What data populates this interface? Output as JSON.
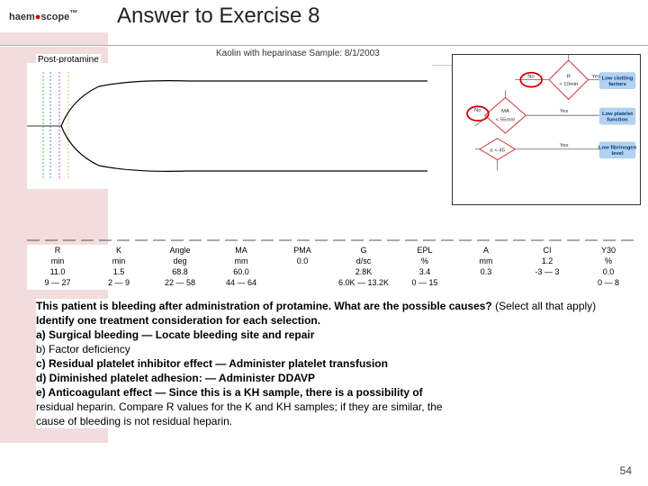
{
  "header": {
    "logo": "haem",
    "logo_red": "●",
    "logo2": "scope",
    "tm": "™",
    "title": "Answer to Exercise 8"
  },
  "chart": {
    "sample_label": "Post-protamine",
    "top_text": "Kaolin with heparinase      Sample: 8/1/2003",
    "type": "teg-curve",
    "curve_color": "#000000",
    "aux_colors": [
      "#00a000",
      "#0060d0",
      "#c000c0",
      "#e0a000"
    ],
    "background": "#ffffff"
  },
  "flowchart": {
    "nodes": {
      "r": "R\n> 10min",
      "ma": "MA\n< 55mm",
      "alpha": "α < 45",
      "lcf": "Low clotting\nfactors",
      "lpf": "Low platelet\nfunction",
      "lfl": "Low fibrinogen\nlevel"
    },
    "labels": {
      "no": "No",
      "yes": "Yes"
    }
  },
  "data": {
    "columns": [
      {
        "name": "R",
        "unit": "min",
        "v1": "11.0",
        "v2": "9 — 27"
      },
      {
        "name": "K",
        "unit": "min",
        "v1": "1.5",
        "v2": "2 — 9"
      },
      {
        "name": "Angle",
        "unit": "deg",
        "v1": "68.8",
        "v2": "22 — 58"
      },
      {
        "name": "MA",
        "unit": "mm",
        "v1": "60.0",
        "v2": "44 — 64"
      },
      {
        "name": "PMA",
        "unit": "",
        "v1": "",
        "v2": "0.0"
      },
      {
        "name": "G",
        "unit": "d/sc",
        "v1": "2.8K",
        "v2": "6.0K — 13.2K"
      },
      {
        "name": "EPL",
        "unit": "%",
        "v1": "3.4",
        "v2": "0 — 15"
      },
      {
        "name": "A",
        "unit": "mm",
        "v1": "",
        "v2": "0.3"
      },
      {
        "name": "CI",
        "unit": "",
        "v1": "1.2",
        "v2": "-3 — 3"
      },
      {
        "name": "Y30",
        "unit": "%",
        "v1": "0.0",
        "v2": "0 — 8"
      }
    ]
  },
  "qa": {
    "question_part1": "This patient is bleeding after administration of protamine. What are the possible causes?",
    "question_part2": " (Select all that apply) ",
    "question_part3": "Identify one treatment consideration for each selection.",
    "options": [
      {
        "bold": true,
        "text": "a) Surgical bleeding — Locate bleeding site and repair"
      },
      {
        "bold": false,
        "text": "b) Factor deficiency"
      },
      {
        "bold": true,
        "text": "c) Residual platelet inhibitor effect — Administer platelet transfusion"
      },
      {
        "bold": true,
        "text": "d) Diminished platelet adhesion: — Administer DDAVP"
      },
      {
        "bold": true,
        "text": "e) Anticoagulant effect — Since this is a KH sample, there is a possibility of"
      },
      {
        "bold": false,
        "text": "residual heparin. Compare R values for the K and KH samples; if they are similar, the"
      },
      {
        "bold": false,
        "text": "cause of bleeding is not residual heparin."
      }
    ]
  },
  "page_number": "54"
}
